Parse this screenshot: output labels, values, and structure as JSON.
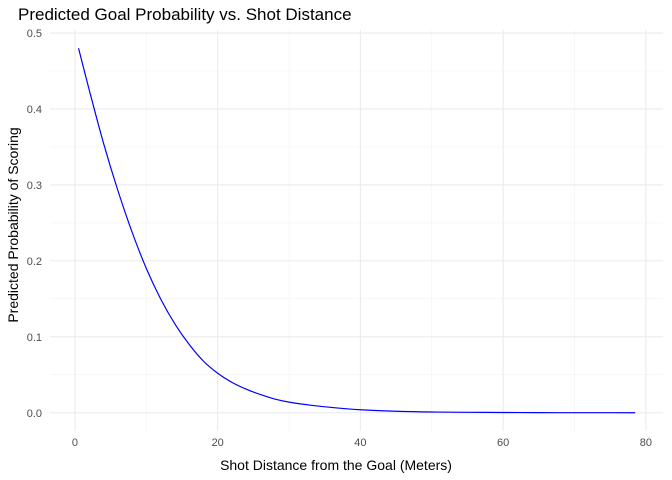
{
  "chart_data": {
    "type": "line",
    "title": "Predicted Goal Probability vs. Shot Distance",
    "xlabel": "Shot Distance from the Goal (Meters)",
    "ylabel": "Predicted Probability of Scoring",
    "xlim": [
      -3.5,
      82.4
    ],
    "ylim": [
      -0.024,
      0.504
    ],
    "x_ticks": [
      0,
      20,
      40,
      60,
      80
    ],
    "x_tick_labels": [
      "0",
      "20",
      "40",
      "60",
      "80"
    ],
    "y_ticks": [
      0.0,
      0.1,
      0.2,
      0.3,
      0.4,
      0.5
    ],
    "y_tick_labels": [
      "0.0",
      "0.1",
      "0.2",
      "0.3",
      "0.4",
      "0.5"
    ],
    "grid": true,
    "legend": "none",
    "series": [
      {
        "color": "#0000ff",
        "x": [
          0.5,
          2,
          4,
          6,
          8,
          10,
          12,
          14,
          16,
          18,
          20,
          22,
          24,
          26,
          28,
          30,
          33,
          36,
          40,
          45,
          50,
          55,
          60,
          65,
          70,
          75,
          78.5
        ],
        "y": [
          0.48,
          0.425,
          0.355,
          0.293,
          0.238,
          0.19,
          0.15,
          0.117,
          0.09,
          0.068,
          0.052,
          0.04,
          0.031,
          0.024,
          0.018,
          0.014,
          0.01,
          0.007,
          0.004,
          0.002,
          0.001,
          0.0006,
          0.0004,
          0.0002,
          0.0001,
          0.0001,
          0.0
        ]
      }
    ]
  }
}
